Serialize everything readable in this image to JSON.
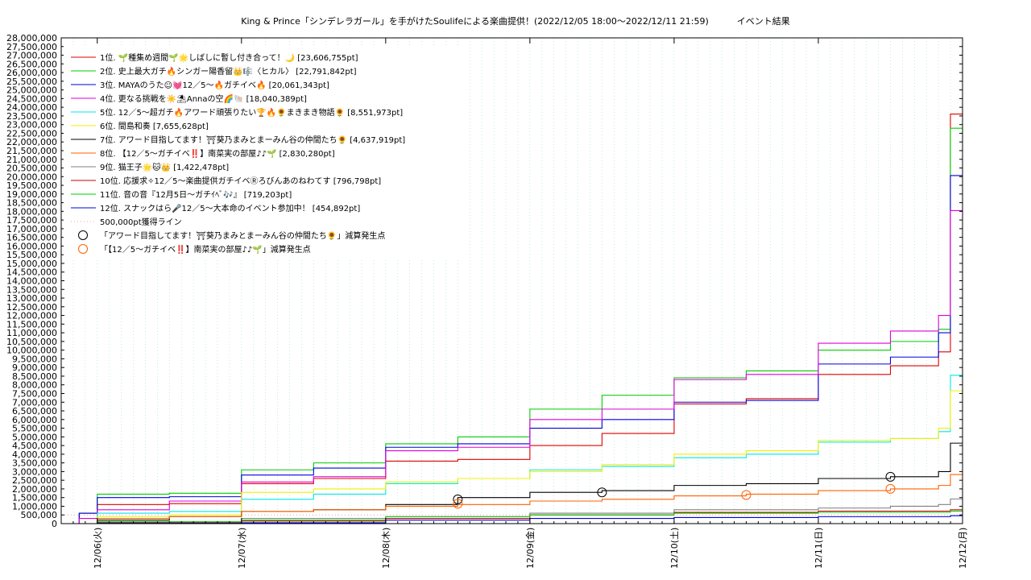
{
  "chart_data": {
    "type": "line",
    "title": "King & Prince「シンデレラガール」を手がけたSoulifeによる楽曲提供！(2022/12/05 18:00～2022/12/11 21:59)          イベント結果",
    "xlabel": "",
    "ylabel": "",
    "x_start": "2022/12/05 18:00",
    "x_end": "2022/12/12 00:00",
    "ylim": [
      0,
      28000000
    ],
    "y_tick_step": 500000,
    "grid": true,
    "legend_position": "top-left",
    "x_ticks": [
      "12/06(火)",
      "12/07(水)",
      "12/08(木)",
      "12/09(金)",
      "12/10(土)",
      "12/11(日)",
      "12/12(月)"
    ],
    "x_tick_dates": [
      "2022/12/06 00:00",
      "2022/12/07 00:00",
      "2022/12/08 00:00",
      "2022/12/09 00:00",
      "2022/12/10 00:00",
      "2022/12/11 00:00",
      "2022/12/12 00:00"
    ],
    "series": [
      {
        "name": "1位. 🌱種集め週間🌱🌟しばしに暫し付き合って！🌙 [23,606,755pt]",
        "color": "#e00000",
        "points": [
          [
            "2022/12/05 18:00",
            0
          ],
          [
            "2022/12/05 21:00",
            600000
          ],
          [
            "2022/12/06 00:00",
            1100000
          ],
          [
            "2022/12/06 12:00",
            1150000
          ],
          [
            "2022/12/07 00:00",
            2300000
          ],
          [
            "2022/12/07 12:00",
            2600000
          ],
          [
            "2022/12/08 00:00",
            3600000
          ],
          [
            "2022/12/08 12:00",
            3700000
          ],
          [
            "2022/12/09 00:00",
            4500000
          ],
          [
            "2022/12/09 12:00",
            5200000
          ],
          [
            "2022/12/10 00:00",
            6900000
          ],
          [
            "2022/12/10 12:00",
            7200000
          ],
          [
            "2022/12/11 00:00",
            8600000
          ],
          [
            "2022/12/11 12:00",
            9100000
          ],
          [
            "2022/12/11 20:00",
            9900000
          ],
          [
            "2022/12/11 21:59",
            23606755
          ],
          [
            "2022/12/12 00:00",
            23606755
          ]
        ]
      },
      {
        "name": "2位. 史上最大ガチ🔥シンガー陽香留👑🎼〈ヒカル〉 [22,791,842pt]",
        "color": "#00cc00",
        "points": [
          [
            "2022/12/05 18:00",
            0
          ],
          [
            "2022/12/05 21:00",
            600000
          ],
          [
            "2022/12/06 00:00",
            1700000
          ],
          [
            "2022/12/06 12:00",
            1750000
          ],
          [
            "2022/12/07 00:00",
            3100000
          ],
          [
            "2022/12/07 12:00",
            3500000
          ],
          [
            "2022/12/08 00:00",
            4600000
          ],
          [
            "2022/12/08 12:00",
            5000000
          ],
          [
            "2022/12/09 00:00",
            6600000
          ],
          [
            "2022/12/09 12:00",
            7400000
          ],
          [
            "2022/12/10 00:00",
            8400000
          ],
          [
            "2022/12/10 12:00",
            8800000
          ],
          [
            "2022/12/11 00:00",
            10000000
          ],
          [
            "2022/12/11 12:00",
            10500000
          ],
          [
            "2022/12/11 20:00",
            11200000
          ],
          [
            "2022/12/11 21:59",
            22791842
          ],
          [
            "2022/12/12 00:00",
            22791842
          ]
        ]
      },
      {
        "name": "3位. MAYAのうた☺💓12／5〜🔥ガチイベ🔥 [20,061,343pt]",
        "color": "#0000e0",
        "points": [
          [
            "2022/12/05 18:00",
            0
          ],
          [
            "2022/12/05 21:00",
            600000
          ],
          [
            "2022/12/06 00:00",
            1500000
          ],
          [
            "2022/12/06 12:00",
            1550000
          ],
          [
            "2022/12/07 00:00",
            2800000
          ],
          [
            "2022/12/07 12:00",
            3200000
          ],
          [
            "2022/12/08 00:00",
            4400000
          ],
          [
            "2022/12/08 12:00",
            4600000
          ],
          [
            "2022/12/09 00:00",
            5500000
          ],
          [
            "2022/12/09 12:00",
            6000000
          ],
          [
            "2022/12/10 00:00",
            7000000
          ],
          [
            "2022/12/10 12:00",
            7100000
          ],
          [
            "2022/12/11 00:00",
            9200000
          ],
          [
            "2022/12/11 12:00",
            9600000
          ],
          [
            "2022/12/11 20:00",
            11000000
          ],
          [
            "2022/12/11 21:59",
            20061343
          ],
          [
            "2022/12/12 00:00",
            20061343
          ]
        ]
      },
      {
        "name": "4位. 更なる挑戦を☀️⛱Annaの空🌈🐚 [18,040,389pt]",
        "color": "#dd00dd",
        "points": [
          [
            "2022/12/05 18:00",
            0
          ],
          [
            "2022/12/05 21:00",
            300000
          ],
          [
            "2022/12/06 00:00",
            800000
          ],
          [
            "2022/12/06 12:00",
            1300000
          ],
          [
            "2022/12/07 00:00",
            2400000
          ],
          [
            "2022/12/07 12:00",
            2700000
          ],
          [
            "2022/12/08 00:00",
            4200000
          ],
          [
            "2022/12/08 12:00",
            4400000
          ],
          [
            "2022/12/09 00:00",
            6000000
          ],
          [
            "2022/12/09 12:00",
            6600000
          ],
          [
            "2022/12/10 00:00",
            8300000
          ],
          [
            "2022/12/10 12:00",
            8600000
          ],
          [
            "2022/12/11 00:00",
            10400000
          ],
          [
            "2022/12/11 12:00",
            11100000
          ],
          [
            "2022/12/11 20:00",
            12000000
          ],
          [
            "2022/12/11 21:59",
            18040389
          ],
          [
            "2022/12/12 00:00",
            18040389
          ]
        ]
      },
      {
        "name": "5位. 12／5〜超ガチ🔥アワード頑張りたい🏆🔥🌻まきまき物語🌻 [8,551,973pt]",
        "color": "#00e8e8",
        "points": [
          [
            "2022/12/05 18:00",
            0
          ],
          [
            "2022/12/06 00:00",
            600000
          ],
          [
            "2022/12/06 12:00",
            700000
          ],
          [
            "2022/12/07 00:00",
            1400000
          ],
          [
            "2022/12/07 12:00",
            1700000
          ],
          [
            "2022/12/08 00:00",
            2300000
          ],
          [
            "2022/12/08 12:00",
            2600000
          ],
          [
            "2022/12/09 00:00",
            3100000
          ],
          [
            "2022/12/09 12:00",
            3300000
          ],
          [
            "2022/12/10 00:00",
            3800000
          ],
          [
            "2022/12/10 12:00",
            4000000
          ],
          [
            "2022/12/11 00:00",
            4700000
          ],
          [
            "2022/12/11 12:00",
            4900000
          ],
          [
            "2022/12/11 20:00",
            5300000
          ],
          [
            "2022/12/11 21:59",
            8551973
          ],
          [
            "2022/12/12 00:00",
            8551973
          ]
        ]
      },
      {
        "name": "6位. 間島和奏 [7,655,628pt]",
        "color": "#f0f000",
        "points": [
          [
            "2022/12/05 18:00",
            0
          ],
          [
            "2022/12/06 00:00",
            400000
          ],
          [
            "2022/12/06 12:00",
            500000
          ],
          [
            "2022/12/07 00:00",
            1800000
          ],
          [
            "2022/12/07 12:00",
            2000000
          ],
          [
            "2022/12/08 00:00",
            2400000
          ],
          [
            "2022/12/08 12:00",
            2600000
          ],
          [
            "2022/12/09 00:00",
            3000000
          ],
          [
            "2022/12/09 12:00",
            3400000
          ],
          [
            "2022/12/10 00:00",
            4000000
          ],
          [
            "2022/12/10 12:00",
            4200000
          ],
          [
            "2022/12/11 00:00",
            4800000
          ],
          [
            "2022/12/11 12:00",
            4900000
          ],
          [
            "2022/12/11 20:00",
            5500000
          ],
          [
            "2022/12/11 21:59",
            7655628
          ],
          [
            "2022/12/12 00:00",
            7655628
          ]
        ]
      },
      {
        "name": "7位. アワード目指してます！⛩葵乃まみとまーみん谷の仲間たち🌻 [4,637,919pt]",
        "color": "#000000",
        "points": [
          [
            "2022/12/05 18:00",
            0
          ],
          [
            "2022/12/06 00:00",
            200000
          ],
          [
            "2022/12/06 12:00",
            400000
          ],
          [
            "2022/12/07 00:00",
            700000
          ],
          [
            "2022/12/07 12:00",
            800000
          ],
          [
            "2022/12/08 00:00",
            1100000
          ],
          [
            "2022/12/08 12:00",
            1500000
          ],
          [
            "2022/12/09 00:00",
            1800000
          ],
          [
            "2022/12/09 12:00",
            1900000
          ],
          [
            "2022/12/10 00:00",
            2200000
          ],
          [
            "2022/12/10 12:00",
            2300000
          ],
          [
            "2022/12/11 00:00",
            2600000
          ],
          [
            "2022/12/11 12:00",
            2700000
          ],
          [
            "2022/12/11 20:00",
            3000000
          ],
          [
            "2022/12/11 21:59",
            4637919
          ],
          [
            "2022/12/12 00:00",
            4637919
          ]
        ]
      },
      {
        "name": "8位. 【12／5〜ガチイベ‼️】南菜実の部屋♪♪🌱 [2,830,280pt]",
        "color": "#ff6000",
        "points": [
          [
            "2022/12/05 18:00",
            0
          ],
          [
            "2022/12/06 00:00",
            300000
          ],
          [
            "2022/12/06 12:00",
            400000
          ],
          [
            "2022/12/07 00:00",
            700000
          ],
          [
            "2022/12/07 12:00",
            800000
          ],
          [
            "2022/12/08 00:00",
            1000000
          ],
          [
            "2022/12/08 12:00",
            1100000
          ],
          [
            "2022/12/09 00:00",
            1300000
          ],
          [
            "2022/12/09 12:00",
            1400000
          ],
          [
            "2022/12/10 00:00",
            1600000
          ],
          [
            "2022/12/10 12:00",
            1700000
          ],
          [
            "2022/12/11 00:00",
            1900000
          ],
          [
            "2022/12/11 12:00",
            2000000
          ],
          [
            "2022/12/11 20:00",
            2200000
          ],
          [
            "2022/12/11 21:59",
            2830280
          ],
          [
            "2022/12/12 00:00",
            2830280
          ]
        ]
      },
      {
        "name": "9位. 猫王子🌟🐱👑 [1,422,478pt]",
        "color": "#808080",
        "points": [
          [
            "2022/12/05 18:00",
            0
          ],
          [
            "2022/12/06 00:00",
            100000
          ],
          [
            "2022/12/07 00:00",
            300000
          ],
          [
            "2022/12/08 00:00",
            400000
          ],
          [
            "2022/12/09 00:00",
            600000
          ],
          [
            "2022/12/10 00:00",
            800000
          ],
          [
            "2022/12/11 00:00",
            900000
          ],
          [
            "2022/12/11 12:00",
            1000000
          ],
          [
            "2022/12/11 20:00",
            1100000
          ],
          [
            "2022/12/11 21:59",
            1422478
          ],
          [
            "2022/12/12 00:00",
            1422478
          ]
        ]
      },
      {
        "name": "10位. 応援求✧12／5〜楽曲提供ガチイベⓇろびんあのねわてす [796,798pt]",
        "color": "#cc0000",
        "points": [
          [
            "2022/12/05 18:00",
            0
          ],
          [
            "2022/12/06 00:00",
            50000
          ],
          [
            "2022/12/07 00:00",
            150000
          ],
          [
            "2022/12/08 00:00",
            300000
          ],
          [
            "2022/12/09 00:00",
            500000
          ],
          [
            "2022/12/10 00:00",
            650000
          ],
          [
            "2022/12/11 00:00",
            720000
          ],
          [
            "2022/12/11 21:59",
            796798
          ],
          [
            "2022/12/12 00:00",
            796798
          ]
        ]
      },
      {
        "name": "11位. 音の音『12月5日〜ガチｲﾍﾞ🎶』 [719,203pt]",
        "color": "#00cc00",
        "points": [
          [
            "2022/12/05 18:00",
            0
          ],
          [
            "2022/12/06 00:00",
            100000
          ],
          [
            "2022/12/07 00:00",
            200000
          ],
          [
            "2022/12/08 00:00",
            400000
          ],
          [
            "2022/12/09 00:00",
            500000
          ],
          [
            "2022/12/10 00:00",
            600000
          ],
          [
            "2022/12/11 00:00",
            650000
          ],
          [
            "2022/12/11 21:59",
            719203
          ],
          [
            "2022/12/12 00:00",
            719203
          ]
        ]
      },
      {
        "name": "12位. スナックはら🎤12／5〜大本命のイベント参加中！ [454,892pt]",
        "color": "#0000dd",
        "points": [
          [
            "2022/12/05 18:00",
            0
          ],
          [
            "2022/12/06 00:00",
            20000
          ],
          [
            "2022/12/07 00:00",
            50000
          ],
          [
            "2022/12/08 00:00",
            200000
          ],
          [
            "2022/12/09 00:00",
            300000
          ],
          [
            "2022/12/10 00:00",
            350000
          ],
          [
            "2022/12/11 00:00",
            400000
          ],
          [
            "2022/12/11 21:59",
            454892
          ],
          [
            "2022/12/12 00:00",
            454892
          ]
        ]
      }
    ],
    "threshold": {
      "name": "500,000pt獲得ライン",
      "value": 500000,
      "color": "#f4a0a0"
    },
    "markers": [
      {
        "name": "「アワード目指してます！⛩葵乃まみとまーみん谷の仲間たち🌻」減算発生点",
        "color": "#000000",
        "points": [
          [
            "2022/12/08 12:00",
            1400000
          ],
          [
            "2022/12/09 12:00",
            1800000
          ],
          [
            "2022/12/11 12:00",
            2700000
          ]
        ]
      },
      {
        "name": "「【12／5〜ガチイベ‼️】南菜実の部屋♪♪🌱」減算発生点",
        "color": "#ff6000",
        "points": [
          [
            "2022/12/08 12:00",
            1150000
          ],
          [
            "2022/12/10 12:00",
            1650000
          ],
          [
            "2022/12/11 12:00",
            2000000
          ]
        ]
      }
    ]
  }
}
